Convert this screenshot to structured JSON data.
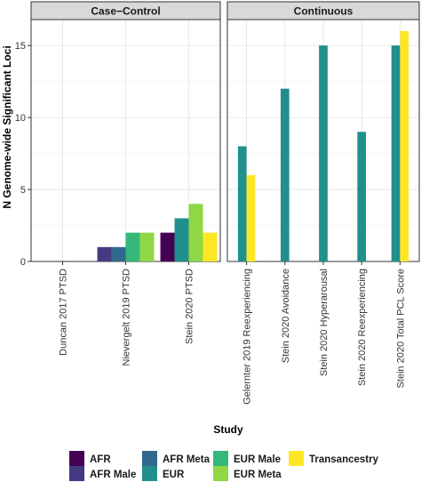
{
  "chart_data": {
    "type": "bar",
    "ylabel": "N Genome-wide Significant Loci",
    "xlabel": "Study",
    "ylim": [
      0,
      16.8
    ],
    "yticks": [
      0,
      5,
      10,
      15
    ],
    "grid": true,
    "legend_position": "bottom",
    "groups": [
      {
        "name": "AFR",
        "color": "#440154"
      },
      {
        "name": "AFR Male",
        "color": "#443a83"
      },
      {
        "name": "AFR Meta",
        "color": "#31688e"
      },
      {
        "name": "EUR",
        "color": "#21908d"
      },
      {
        "name": "EUR Male",
        "color": "#35b779"
      },
      {
        "name": "EUR Meta",
        "color": "#8fd744"
      },
      {
        "name": "Transancestry",
        "color": "#fde725"
      }
    ],
    "facets": [
      {
        "strip": "Case−Control",
        "categories": [
          {
            "label": "Duncan 2017 PTSD",
            "bars": []
          },
          {
            "label": "Nievergelt 2019 PTSD",
            "bars": [
              {
                "group": "AFR Male",
                "value": 1
              },
              {
                "group": "AFR Meta",
                "value": 1
              },
              {
                "group": "EUR Male",
                "value": 2
              },
              {
                "group": "EUR Meta",
                "value": 2
              }
            ]
          },
          {
            "label": "Stein 2020 PTSD",
            "bars": [
              {
                "group": "AFR",
                "value": 2
              },
              {
                "group": "EUR",
                "value": 3
              },
              {
                "group": "EUR Meta",
                "value": 4
              },
              {
                "group": "Transancestry",
                "value": 2
              }
            ]
          }
        ]
      },
      {
        "strip": "Continuous",
        "categories": [
          {
            "label": "Gelernter 2019 Reexperiencing",
            "bars": [
              {
                "group": "EUR",
                "value": 8
              },
              {
                "group": "Transancestry",
                "value": 6
              }
            ]
          },
          {
            "label": "Stein 2020 Avoidance",
            "bars": [
              {
                "group": "EUR",
                "value": 12
              }
            ]
          },
          {
            "label": "Stein 2020 Hyperarousal",
            "bars": [
              {
                "group": "EUR",
                "value": 15
              }
            ]
          },
          {
            "label": "Stein 2020 Reexperiencing",
            "bars": [
              {
                "group": "EUR",
                "value": 9
              }
            ]
          },
          {
            "label": "Stein 2020 Total PCL Score",
            "bars": [
              {
                "group": "EUR",
                "value": 15
              },
              {
                "group": "Transancestry",
                "value": 16
              }
            ]
          }
        ]
      }
    ]
  }
}
